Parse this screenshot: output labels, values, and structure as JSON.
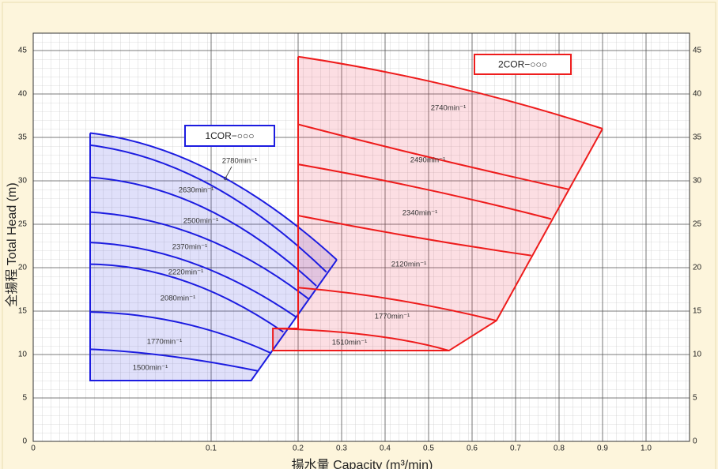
{
  "chart_data": {
    "type": "region",
    "xlabel": "揚水量 Capacity (m³/min)",
    "ylabel": "全揚程 Total Head (m)",
    "xlim": [
      0,
      1.1
    ],
    "ylim": [
      0,
      47
    ],
    "xticks": [
      0,
      0.1,
      0.2,
      0.3,
      0.4,
      0.5,
      0.6,
      0.7,
      0.8,
      0.9,
      {
        "value": 1,
        "label": "1.0"
      }
    ],
    "yticks": [
      0,
      5,
      10,
      15,
      20,
      25,
      30,
      35,
      40,
      45
    ],
    "grid": true,
    "series": [
      {
        "name": "1COR−○○○",
        "color": "#1c1ce0",
        "fill": "rgba(70,70,225,0.17)",
        "x": [
          0.032,
          0.032,
          0.146,
          0.289
        ],
        "y": [
          35.5,
          7,
          7,
          20.9
        ],
        "curves": [
          {
            "name": "2780min⁻¹",
            "x": [
              0.032,
              0.103,
              0.289
            ],
            "y": [
              35.5,
              31.0,
              20.9
            ]
          },
          {
            "name": "2630min⁻¹",
            "x": [
              0.032,
              0.099,
              0.265
            ],
            "y": [
              34.1,
              29.6,
              19.5
            ]
          },
          {
            "name": "2500min⁻¹",
            "x": [
              0.032,
              0.097,
              0.242
            ],
            "y": [
              30.4,
              26.8,
              17.9
            ]
          },
          {
            "name": "2370min⁻¹",
            "x": [
              0.032,
              0.095,
              0.224
            ],
            "y": [
              26.4,
              23.5,
              16.4
            ]
          },
          {
            "name": "2220min⁻¹",
            "x": [
              0.032,
              0.09,
              0.198
            ],
            "y": [
              22.9,
              20.5,
              14.3
            ]
          },
          {
            "name": "2080min⁻¹",
            "x": [
              0.032,
              0.086,
              0.183
            ],
            "y": [
              20.4,
              18.4,
              12.6
            ]
          },
          {
            "name": "1770min⁻¹",
            "x": [
              0.032,
              0.084,
              0.168
            ],
            "y": [
              14.9,
              13.6,
              10.2
            ]
          },
          {
            "name": "1500min⁻¹",
            "x": [
              0.032,
              0.077,
              0.154
            ],
            "y": [
              10.6,
              9.8,
              8.1
            ]
          }
        ]
      },
      {
        "name": "2COR−○○○",
        "color": "#ee1c1c",
        "fill": "rgba(240,60,90,0.17)",
        "x": [
          0.2,
          0.2,
          0.171,
          0.171,
          0.547,
          0.656,
          0.9
        ],
        "y": [
          44.3,
          13.0,
          13.0,
          10.45,
          10.45,
          13.9,
          36
        ],
        "curves": [
          {
            "name": "2740min⁻¹",
            "x": [
              0.2,
              0.551,
              0.9
            ],
            "y": [
              44.3,
              40.9,
              36
            ]
          },
          {
            "name": "2490min⁻¹",
            "x": [
              0.2,
              0.511,
              0.824
            ],
            "y": [
              36.5,
              32.6,
              29.0
            ]
          },
          {
            "name": "2340min⁻¹",
            "x": [
              0.2,
              0.496,
              0.782
            ],
            "y": [
              31.9,
              29.0,
              25.6
            ]
          },
          {
            "name": "2120min⁻¹",
            "x": [
              0.2,
              0.469,
              0.736
            ],
            "y": [
              26.0,
              23.5,
              21.4
            ]
          },
          {
            "name": "1770min⁻¹",
            "x": [
              0.2,
              0.424,
              0.656
            ],
            "y": [
              17.7,
              16.3,
              13.9
            ]
          },
          {
            "name": "1510min⁻¹",
            "x": [
              0.171,
              0.369,
              0.547
            ],
            "y": [
              13.0,
              12.2,
              10.45
            ]
          }
        ]
      }
    ]
  }
}
